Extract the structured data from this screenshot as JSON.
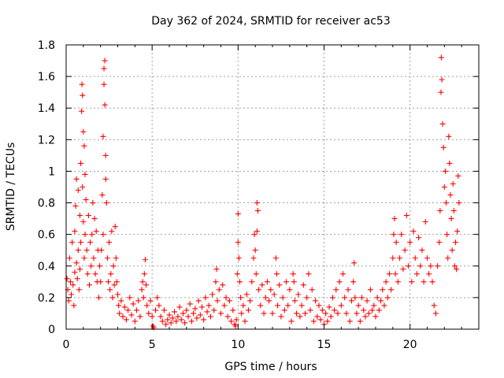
{
  "chart_data": {
    "type": "scatter",
    "title": "Day 362 of 2024, SRMTID for receiver ac53",
    "xlabel": "GPS time / hours",
    "ylabel": "SRMTID / TECUs",
    "xlim": [
      0,
      24
    ],
    "ylim": [
      0,
      1.8
    ],
    "xticks": [
      0,
      5,
      10,
      15,
      20
    ],
    "xtick_labels": [
      "0",
      "5",
      "10",
      "15",
      "20"
    ],
    "yticks": [
      0,
      0.2,
      0.4,
      0.6,
      0.8,
      1.0,
      1.2,
      1.4,
      1.6,
      1.8
    ],
    "ytick_labels": [
      "0",
      "0.2",
      "0.4",
      "0.6",
      "0.8",
      "1",
      "1.2",
      "1.4",
      "1.6",
      "1.8"
    ],
    "grid": true,
    "marker": "plus",
    "series": [
      {
        "name": "SRMTID",
        "color": "#ff0000",
        "points": [
          [
            0.05,
            0.32
          ],
          [
            0.1,
            0.25
          ],
          [
            0.15,
            0.18
          ],
          [
            0.2,
            0.45
          ],
          [
            0.25,
            0.3
          ],
          [
            0.3,
            0.22
          ],
          [
            0.35,
            0.55
          ],
          [
            0.4,
            0.28
          ],
          [
            0.45,
            0.15
          ],
          [
            0.5,
            0.62
          ],
          [
            0.5,
            0.36
          ],
          [
            0.55,
            0.78
          ],
          [
            0.6,
            0.95
          ],
          [
            0.6,
            0.42
          ],
          [
            0.65,
            0.32
          ],
          [
            0.7,
            0.88
          ],
          [
            0.7,
            0.5
          ],
          [
            0.75,
            0.25
          ],
          [
            0.8,
            0.72
          ],
          [
            0.8,
            0.38
          ],
          [
            0.85,
            1.05
          ],
          [
            0.85,
            0.55
          ],
          [
            0.9,
            1.38
          ],
          [
            0.92,
            1.55
          ],
          [
            0.95,
            1.48
          ],
          [
            0.95,
            0.9
          ],
          [
            1.0,
            1.25
          ],
          [
            1.0,
            0.68
          ],
          [
            1.05,
            1.16
          ],
          [
            1.05,
            0.45
          ],
          [
            1.1,
            0.98
          ],
          [
            1.1,
            0.6
          ],
          [
            1.15,
            0.82
          ],
          [
            1.2,
            0.5
          ],
          [
            1.25,
            0.35
          ],
          [
            1.3,
            0.72
          ],
          [
            1.35,
            0.28
          ],
          [
            1.4,
            0.55
          ],
          [
            1.45,
            0.4
          ],
          [
            1.5,
            0.6
          ],
          [
            1.55,
            0.8
          ],
          [
            1.6,
            0.45
          ],
          [
            1.65,
            0.7
          ],
          [
            1.7,
            0.35
          ],
          [
            1.75,
            0.62
          ],
          [
            1.8,
            0.3
          ],
          [
            1.85,
            0.5
          ],
          [
            1.9,
            0.2
          ],
          [
            1.95,
            0.4
          ],
          [
            2.0,
            0.3
          ],
          [
            2.05,
            0.5
          ],
          [
            2.1,
            0.85
          ],
          [
            2.15,
            1.22
          ],
          [
            2.15,
            0.6
          ],
          [
            2.2,
            1.55
          ],
          [
            2.2,
            1.65
          ],
          [
            2.25,
            1.7
          ],
          [
            2.25,
            1.42
          ],
          [
            2.3,
            1.1
          ],
          [
            2.3,
            0.95
          ],
          [
            2.35,
            0.8
          ],
          [
            2.4,
            0.45
          ],
          [
            2.45,
            0.3
          ],
          [
            2.5,
            0.55
          ],
          [
            2.55,
            0.25
          ],
          [
            2.6,
            0.35
          ],
          [
            2.65,
            0.62
          ],
          [
            2.7,
            0.2
          ],
          [
            2.75,
            0.4
          ],
          [
            2.8,
            0.28
          ],
          [
            2.85,
            0.65
          ],
          [
            2.9,
            0.45
          ],
          [
            2.95,
            0.3
          ],
          [
            3.0,
            0.22
          ],
          [
            3.05,
            0.15
          ],
          [
            3.1,
            0.1
          ],
          [
            3.2,
            0.18
          ],
          [
            3.3,
            0.08
          ],
          [
            3.4,
            0.14
          ],
          [
            3.5,
            0.06
          ],
          [
            3.6,
            0.12
          ],
          [
            3.7,
            0.2
          ],
          [
            3.8,
            0.09
          ],
          [
            3.9,
            0.16
          ],
          [
            4.0,
            0.05
          ],
          [
            4.1,
            0.12
          ],
          [
            4.2,
            0.18
          ],
          [
            4.3,
            0.08
          ],
          [
            4.4,
            0.25
          ],
          [
            4.45,
            0.3
          ],
          [
            4.5,
            0.2
          ],
          [
            4.55,
            0.35
          ],
          [
            4.6,
            0.44
          ],
          [
            4.65,
            0.28
          ],
          [
            4.7,
            0.15
          ],
          [
            4.8,
            0.1
          ],
          [
            4.9,
            0.18
          ],
          [
            5.0,
            0.08
          ],
          [
            5.05,
            0.02
          ],
          [
            5.1,
            0.01
          ],
          [
            5.2,
            0.12
          ],
          [
            5.3,
            0.2
          ],
          [
            5.4,
            0.15
          ],
          [
            5.5,
            0.08
          ],
          [
            5.6,
            0.05
          ],
          [
            5.7,
            0.12
          ],
          [
            5.8,
            0.03
          ],
          [
            5.9,
            0.06
          ],
          [
            6.0,
            0.09
          ],
          [
            6.1,
            0.04
          ],
          [
            6.2,
            0.07
          ],
          [
            6.3,
            0.11
          ],
          [
            6.4,
            0.05
          ],
          [
            6.5,
            0.08
          ],
          [
            6.6,
            0.14
          ],
          [
            6.7,
            0.06
          ],
          [
            6.8,
            0.1
          ],
          [
            6.9,
            0.04
          ],
          [
            7.0,
            0.12
          ],
          [
            7.1,
            0.08
          ],
          [
            7.2,
            0.16
          ],
          [
            7.3,
            0.05
          ],
          [
            7.4,
            0.1
          ],
          [
            7.5,
            0.13
          ],
          [
            7.6,
            0.07
          ],
          [
            7.7,
            0.18
          ],
          [
            7.8,
            0.09
          ],
          [
            7.9,
            0.14
          ],
          [
            8.0,
            0.06
          ],
          [
            8.1,
            0.2
          ],
          [
            8.2,
            0.11
          ],
          [
            8.3,
            0.15
          ],
          [
            8.4,
            0.08
          ],
          [
            8.5,
            0.22
          ],
          [
            8.6,
            0.12
          ],
          [
            8.7,
            0.3
          ],
          [
            8.75,
            0.38
          ],
          [
            8.8,
            0.18
          ],
          [
            8.9,
            0.25
          ],
          [
            9.0,
            0.1
          ],
          [
            9.1,
            0.28
          ],
          [
            9.2,
            0.15
          ],
          [
            9.3,
            0.2
          ],
          [
            9.4,
            0.08
          ],
          [
            9.5,
            0.18
          ],
          [
            9.6,
            0.05
          ],
          [
            9.7,
            0.12
          ],
          [
            9.8,
            0.03
          ],
          [
            9.85,
            0.02
          ],
          [
            9.9,
            0.06
          ],
          [
            9.95,
            0.35
          ],
          [
            10.0,
            0.55
          ],
          [
            10.0,
            0.73
          ],
          [
            10.05,
            0.45
          ],
          [
            10.1,
            0.3
          ],
          [
            10.15,
            0.2
          ],
          [
            10.2,
            0.1
          ],
          [
            10.3,
            0.15
          ],
          [
            10.4,
            0.05
          ],
          [
            10.5,
            0.22
          ],
          [
            10.6,
            0.12
          ],
          [
            10.7,
            0.18
          ],
          [
            10.8,
            0.3
          ],
          [
            10.9,
            0.45
          ],
          [
            10.95,
            0.6
          ],
          [
            11.0,
            0.5
          ],
          [
            11.05,
            0.35
          ],
          [
            11.1,
            0.8
          ],
          [
            11.1,
            0.62
          ],
          [
            11.15,
            0.75
          ],
          [
            11.2,
            0.25
          ],
          [
            11.3,
            0.15
          ],
          [
            11.4,
            0.28
          ],
          [
            11.5,
            0.1
          ],
          [
            11.6,
            0.2
          ],
          [
            11.7,
            0.3
          ],
          [
            11.8,
            0.18
          ],
          [
            11.9,
            0.25
          ],
          [
            12.0,
            0.1
          ],
          [
            12.1,
            0.22
          ],
          [
            12.2,
            0.45
          ],
          [
            12.25,
            0.35
          ],
          [
            12.3,
            0.15
          ],
          [
            12.4,
            0.28
          ],
          [
            12.5,
            0.08
          ],
          [
            12.6,
            0.2
          ],
          [
            12.7,
            0.12
          ],
          [
            12.8,
            0.3
          ],
          [
            12.9,
            0.15
          ],
          [
            13.0,
            0.25
          ],
          [
            13.1,
            0.05
          ],
          [
            13.2,
            0.35
          ],
          [
            13.25,
            0.3
          ],
          [
            13.3,
            0.18
          ],
          [
            13.4,
            0.1
          ],
          [
            13.5,
            0.22
          ],
          [
            13.6,
            0.08
          ],
          [
            13.7,
            0.15
          ],
          [
            13.8,
            0.28
          ],
          [
            13.9,
            0.1
          ],
          [
            14.0,
            0.2
          ],
          [
            14.1,
            0.35
          ],
          [
            14.2,
            0.12
          ],
          [
            14.3,
            0.25
          ],
          [
            14.4,
            0.05
          ],
          [
            14.5,
            0.18
          ],
          [
            14.6,
            0.08
          ],
          [
            14.7,
            0.15
          ],
          [
            14.8,
            0.06
          ],
          [
            14.9,
            0.12
          ],
          [
            15.0,
            0.03
          ],
          [
            15.1,
            0.1
          ],
          [
            15.2,
            0.05
          ],
          [
            15.3,
            0.14
          ],
          [
            15.4,
            0.08
          ],
          [
            15.5,
            0.2
          ],
          [
            15.6,
            0.12
          ],
          [
            15.7,
            0.25
          ],
          [
            15.8,
            0.1
          ],
          [
            15.9,
            0.3
          ],
          [
            16.0,
            0.15
          ],
          [
            16.1,
            0.35
          ],
          [
            16.2,
            0.2
          ],
          [
            16.3,
            0.1
          ],
          [
            16.4,
            0.25
          ],
          [
            16.5,
            0.05
          ],
          [
            16.6,
            0.18
          ],
          [
            16.7,
            0.3
          ],
          [
            16.75,
            0.42
          ],
          [
            16.8,
            0.2
          ],
          [
            16.9,
            0.1
          ],
          [
            17.0,
            0.15
          ],
          [
            17.1,
            0.05
          ],
          [
            17.2,
            0.2
          ],
          [
            17.3,
            0.12
          ],
          [
            17.4,
            0.08
          ],
          [
            17.5,
            0.18
          ],
          [
            17.6,
            0.1
          ],
          [
            17.7,
            0.25
          ],
          [
            17.8,
            0.12
          ],
          [
            17.9,
            0.15
          ],
          [
            18.0,
            0.08
          ],
          [
            18.1,
            0.2
          ],
          [
            18.2,
            0.12
          ],
          [
            18.3,
            0.18
          ],
          [
            18.4,
            0.25
          ],
          [
            18.5,
            0.15
          ],
          [
            18.6,
            0.3
          ],
          [
            18.7,
            0.2
          ],
          [
            18.8,
            0.35
          ],
          [
            18.9,
            0.25
          ],
          [
            19.0,
            0.45
          ],
          [
            19.05,
            0.6
          ],
          [
            19.1,
            0.7
          ],
          [
            19.15,
            0.35
          ],
          [
            19.2,
            0.55
          ],
          [
            19.3,
            0.3
          ],
          [
            19.4,
            0.45
          ],
          [
            19.5,
            0.6
          ],
          [
            19.6,
            0.38
          ],
          [
            19.7,
            0.5
          ],
          [
            19.8,
            0.72
          ],
          [
            19.9,
            0.4
          ],
          [
            20.0,
            0.55
          ],
          [
            20.1,
            0.3
          ],
          [
            20.2,
            0.62
          ],
          [
            20.3,
            0.45
          ],
          [
            20.4,
            0.35
          ],
          [
            20.5,
            0.58
          ],
          [
            20.6,
            0.4
          ],
          [
            20.7,
            0.5
          ],
          [
            20.8,
            0.3
          ],
          [
            20.9,
            0.68
          ],
          [
            21.0,
            0.45
          ],
          [
            21.1,
            0.35
          ],
          [
            21.2,
            0.4
          ],
          [
            21.3,
            0.3
          ],
          [
            21.4,
            0.15
          ],
          [
            21.5,
            0.1
          ],
          [
            21.6,
            0.4
          ],
          [
            21.7,
            0.55
          ],
          [
            21.75,
            0.75
          ],
          [
            21.8,
            1.5
          ],
          [
            21.82,
            1.72
          ],
          [
            21.85,
            1.58
          ],
          [
            21.9,
            1.3
          ],
          [
            21.95,
            1.15
          ],
          [
            22.0,
            0.9
          ],
          [
            22.05,
            1.0
          ],
          [
            22.1,
            0.8
          ],
          [
            22.15,
            0.6
          ],
          [
            22.2,
            0.45
          ],
          [
            22.25,
            1.22
          ],
          [
            22.3,
            1.05
          ],
          [
            22.35,
            0.85
          ],
          [
            22.4,
            0.7
          ],
          [
            22.45,
            0.5
          ],
          [
            22.5,
            0.92
          ],
          [
            22.55,
            0.75
          ],
          [
            22.6,
            0.4
          ],
          [
            22.65,
            0.55
          ],
          [
            22.7,
            0.38
          ],
          [
            22.75,
            0.62
          ],
          [
            22.8,
            0.97
          ],
          [
            22.85,
            0.8
          ]
        ]
      }
    ]
  }
}
